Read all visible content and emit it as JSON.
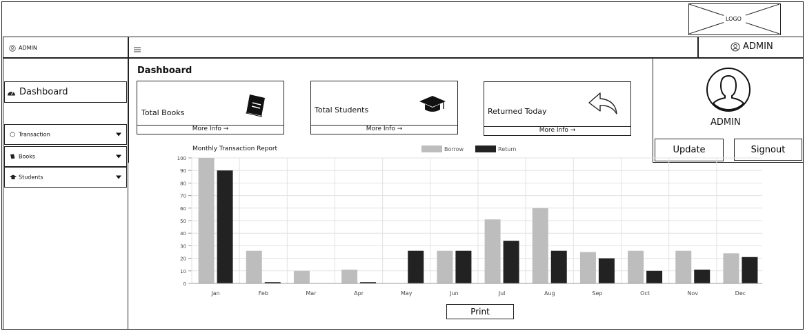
{
  "header": {
    "logo_label": "LOGO"
  },
  "topbar": {
    "left_user": "ADMIN",
    "right_user": "ADMIN",
    "menu_icon": "hamburger-icon"
  },
  "sidebar": {
    "dashboard": "Dashboard",
    "items": [
      {
        "label": "Transaction",
        "icon": "circle-icon"
      },
      {
        "label": "Books",
        "icon": "book-icon"
      },
      {
        "label": "Students",
        "icon": "graduation-cap-icon"
      }
    ]
  },
  "main": {
    "title": "Dashboard",
    "cards": [
      {
        "label": "Total Books",
        "more": "More Info →",
        "icon": "book-icon"
      },
      {
        "label": "Total Students",
        "more": "More Info →",
        "icon": "graduation-cap-icon"
      },
      {
        "label": "Returned Today",
        "more": "More Info →",
        "icon": "reply-arrow-icon"
      }
    ],
    "print_label": "Print"
  },
  "profile": {
    "name": "ADMIN",
    "update_label": "Update",
    "signout_label": "Signout"
  },
  "chart_data": {
    "type": "bar",
    "title": "Monthly Transaction Report",
    "categories": [
      "Jan",
      "Feb",
      "Mar",
      "Apr",
      "May",
      "Jun",
      "Jul",
      "Aug",
      "Sep",
      "Oct",
      "Nov",
      "Dec"
    ],
    "series": [
      {
        "name": "Borrow",
        "color": "#bdbdbd",
        "values": [
          100,
          26,
          10,
          11,
          0,
          26,
          51,
          60,
          25,
          26,
          26,
          24
        ]
      },
      {
        "name": "Return",
        "color": "#222222",
        "values": [
          90,
          1,
          0,
          1,
          26,
          26,
          34,
          26,
          20,
          10,
          11,
          21
        ]
      }
    ],
    "ylim": [
      0,
      100
    ],
    "yticks": [
      0,
      10,
      20,
      30,
      40,
      50,
      60,
      70,
      80,
      90,
      100
    ],
    "grid": true,
    "legend": "top"
  }
}
